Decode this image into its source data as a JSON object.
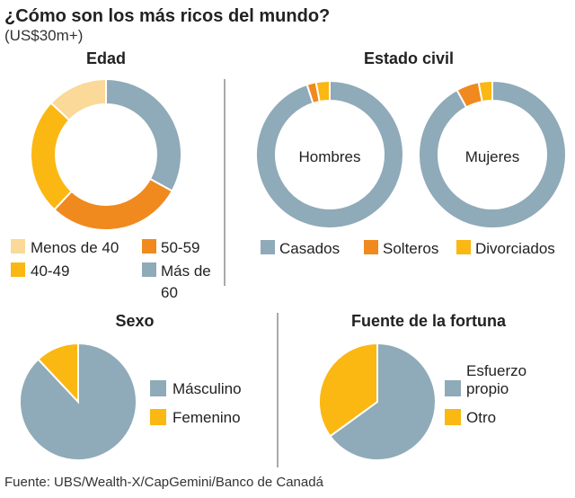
{
  "header": {
    "title": "¿Cómo son los más ricos del mundo?",
    "subtitle": "(US$30m+)"
  },
  "source": "Fuente: UBS/Wealth-X/CapGemini/Banco de Canadá",
  "colors": {
    "gray": "#8faab8",
    "orange": "#f08a1e",
    "yellow": "#fbb712",
    "light": "#fad999"
  },
  "chart_data": [
    {
      "type": "pie",
      "title": "Edad",
      "donut": true,
      "series": [
        {
          "name": "Más de 60",
          "value": 33,
          "color": "#8faab8"
        },
        {
          "name": "50-59",
          "value": 29,
          "color": "#f08a1e"
        },
        {
          "name": "40-49",
          "value": 25,
          "color": "#fbb712"
        },
        {
          "name": "Menos de 40",
          "value": 13,
          "color": "#fad999"
        }
      ],
      "legend": [
        {
          "label": "Menos de 40",
          "color": "#fad999"
        },
        {
          "label": "50-59",
          "color": "#f08a1e"
        },
        {
          "label": "40-49",
          "color": "#fbb712"
        },
        {
          "label": "Más de",
          "label2": "60",
          "color": "#8faab8"
        }
      ]
    },
    {
      "type": "pie",
      "title": "Estado civil",
      "donut": true,
      "charts": [
        {
          "center_label": "Hombres",
          "series": [
            {
              "name": "Casados",
              "value": 95,
              "color": "#8faab8"
            },
            {
              "name": "Solteros",
              "value": 2,
              "color": "#f08a1e"
            },
            {
              "name": "Divorciados",
              "value": 3,
              "color": "#fbb712"
            }
          ]
        },
        {
          "center_label": "Mujeres",
          "series": [
            {
              "name": "Casados",
              "value": 92,
              "color": "#8faab8"
            },
            {
              "name": "Solteros",
              "value": 5,
              "color": "#f08a1e"
            },
            {
              "name": "Divorciados",
              "value": 3,
              "color": "#fbb712"
            }
          ]
        }
      ],
      "legend": [
        {
          "label": "Casados",
          "color": "#8faab8"
        },
        {
          "label": "Solteros",
          "color": "#f08a1e"
        },
        {
          "label": "Divorciados",
          "color": "#fbb712"
        }
      ]
    },
    {
      "type": "pie",
      "title": "Sexo",
      "series": [
        {
          "name": "Másculino",
          "value": 88,
          "color": "#8faab8"
        },
        {
          "name": "Femenino",
          "value": 12,
          "color": "#fbb712"
        }
      ],
      "legend": [
        {
          "label": "Másculino",
          "color": "#8faab8"
        },
        {
          "label": "Femenino",
          "color": "#fbb712"
        }
      ]
    },
    {
      "type": "pie",
      "title": "Fuente de la fortuna",
      "series": [
        {
          "name": "Esfuerzo propio",
          "value": 65,
          "color": "#8faab8"
        },
        {
          "name": "Otro",
          "value": 35,
          "color": "#fbb712"
        }
      ],
      "legend": [
        {
          "label": "Esfuerzo",
          "label2": "propio",
          "color": "#8faab8"
        },
        {
          "label": "Otro",
          "color": "#fbb712"
        }
      ]
    }
  ]
}
